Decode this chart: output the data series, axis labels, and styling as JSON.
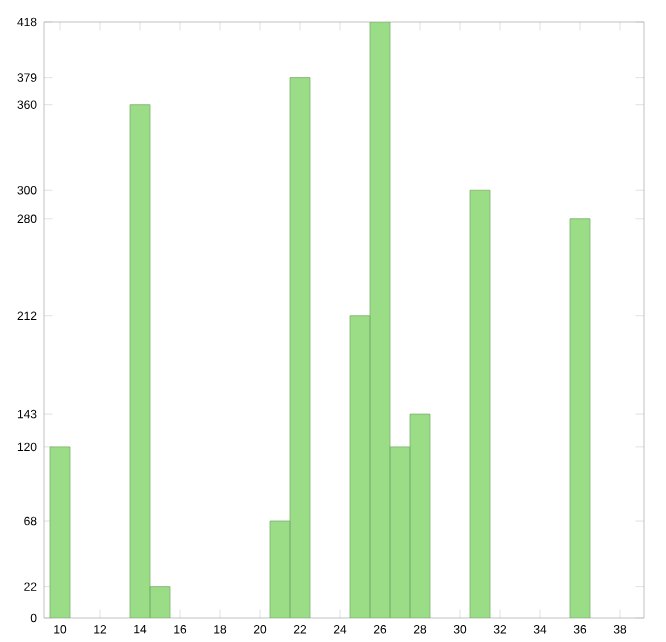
{
  "chart_data": {
    "type": "bar",
    "x": [
      10,
      14,
      15,
      21,
      22,
      25,
      26,
      27,
      28,
      31,
      36
    ],
    "values": [
      120,
      360,
      22,
      68,
      379,
      212,
      418,
      120,
      143,
      300,
      280
    ],
    "color": "#9bdc87",
    "xlim": [
      9.2,
      39.2
    ],
    "xticks": [
      10,
      12,
      14,
      16,
      18,
      20,
      22,
      24,
      26,
      28,
      30,
      32,
      34,
      36,
      38
    ],
    "ylim": [
      0,
      418
    ],
    "yticks": [
      0,
      22,
      68,
      120,
      143,
      212,
      280,
      300,
      360,
      379,
      418
    ],
    "grid": false
  }
}
